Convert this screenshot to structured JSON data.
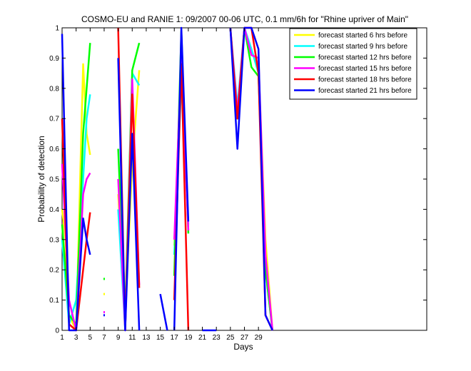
{
  "chart_data": {
    "type": "line",
    "title": "COSMO-EU and RANIE 1: 09/2007 00-06 UTC, 0.1 mm/6h for \"Rhine upriver of Main\"",
    "xlabel": "Days",
    "ylabel": "Probability of detection",
    "xlim": [
      1,
      53
    ],
    "ylim": [
      0,
      1
    ],
    "xticks": [
      1,
      3,
      5,
      7,
      9,
      11,
      13,
      15,
      17,
      19,
      21,
      23,
      25,
      27,
      29
    ],
    "yticks": [
      0,
      0.1,
      0.2,
      0.3,
      0.4,
      0.5,
      0.6,
      0.7,
      0.8,
      0.9,
      1
    ],
    "grid": false,
    "legend_position": "top-right",
    "series": [
      {
        "name": "forecast started 6 hrs before",
        "color": "#ffff00",
        "segments": [
          [
            [
              1,
              0.4
            ],
            [
              1.5,
              0.3
            ],
            [
              2,
              0.05
            ],
            [
              3,
              0
            ],
            [
              4,
              0.88
            ],
            [
              4.5,
              0.65
            ],
            [
              5,
              0.58
            ]
          ],
          [
            [
              9,
              0.45
            ],
            [
              10,
              0.05
            ],
            [
              11,
              0.55
            ],
            [
              12,
              0.86
            ]
          ],
          [
            [
              17,
              0.28
            ],
            [
              18,
              0.92
            ],
            [
              19,
              0.33
            ]
          ],
          [
            [
              25,
              1
            ],
            [
              26,
              0.7
            ],
            [
              27,
              1
            ],
            [
              28,
              0.92
            ],
            [
              29,
              0.88
            ],
            [
              30,
              0.3
            ],
            [
              31,
              0
            ]
          ]
        ],
        "points": [
          [
            7,
            0.12
          ]
        ]
      },
      {
        "name": "forecast started 9 hrs before",
        "color": "#00ffff",
        "segments": [
          [
            [
              1,
              0.3
            ],
            [
              2,
              0.02
            ],
            [
              3,
              0.1
            ],
            [
              4,
              0.5
            ],
            [
              4.5,
              0.7
            ],
            [
              5,
              0.78
            ]
          ],
          [
            [
              9,
              0.4
            ],
            [
              10,
              0
            ],
            [
              11,
              0.85
            ],
            [
              12,
              0.81
            ]
          ],
          [
            [
              17,
              0.25
            ],
            [
              18,
              0.82
            ],
            [
              19,
              0.35
            ]
          ],
          [
            [
              25,
              1
            ],
            [
              26,
              0.74
            ],
            [
              27,
              1
            ],
            [
              28,
              0.93
            ],
            [
              29,
              0.85
            ],
            [
              30,
              0.2
            ],
            [
              31,
              0
            ]
          ]
        ],
        "points": []
      },
      {
        "name": "forecast started 12 hrs before",
        "color": "#00ff00",
        "segments": [
          [
            [
              1,
              0.35
            ],
            [
              2,
              0.05
            ],
            [
              3,
              0.02
            ],
            [
              4,
              0.65
            ],
            [
              4.5,
              0.8
            ],
            [
              5,
              0.95
            ]
          ],
          [
            [
              9,
              0.6
            ],
            [
              10,
              0.05
            ],
            [
              11,
              0.86
            ],
            [
              12,
              0.95
            ]
          ],
          [
            [
              17,
              0.18
            ],
            [
              18,
              0.99
            ],
            [
              19,
              0.32
            ]
          ],
          [
            [
              25,
              1
            ],
            [
              26,
              0.7
            ],
            [
              27,
              1
            ],
            [
              28,
              0.87
            ],
            [
              29,
              0.84
            ],
            [
              30,
              0.2
            ],
            [
              31,
              0
            ]
          ]
        ],
        "points": [
          [
            7,
            0.17
          ]
        ]
      },
      {
        "name": "forecast started 15 hrs before",
        "color": "#ff00ff",
        "segments": [
          [
            [
              1,
              0.55
            ],
            [
              2,
              0.1
            ],
            [
              3,
              0
            ],
            [
              4,
              0.45
            ],
            [
              4.5,
              0.5
            ],
            [
              5,
              0.52
            ]
          ],
          [
            [
              9,
              0.5
            ],
            [
              10,
              0
            ],
            [
              11,
              0.83
            ],
            [
              12,
              0.15
            ]
          ],
          [
            [
              17,
              0.3
            ],
            [
              18,
              0.9
            ],
            [
              19,
              0.33
            ]
          ],
          [
            [
              25,
              1
            ],
            [
              26,
              0.72
            ],
            [
              27,
              1
            ],
            [
              28,
              0.91
            ],
            [
              29,
              0.9
            ],
            [
              30,
              0.25
            ],
            [
              31,
              0
            ]
          ]
        ],
        "points": [
          [
            7,
            0.06
          ]
        ]
      },
      {
        "name": "forecast started 18 hrs before",
        "color": "#ff0000",
        "segments": [
          [
            [
              1,
              0.7
            ],
            [
              2,
              0.02
            ],
            [
              3,
              0
            ],
            [
              4,
              0.2
            ],
            [
              4.5,
              0.3
            ],
            [
              5,
              0.39
            ]
          ],
          [
            [
              9,
              1
            ],
            [
              10,
              0
            ],
            [
              11,
              0.78
            ],
            [
              12,
              0.14
            ]
          ],
          [
            [
              17,
              0.1
            ],
            [
              18,
              0.88
            ],
            [
              19,
              0
            ]
          ],
          [
            [
              25,
              1
            ],
            [
              26,
              0.7
            ],
            [
              27,
              1
            ],
            [
              28,
              1
            ],
            [
              29,
              0.85
            ],
            [
              30,
              0.05
            ],
            [
              31,
              0
            ]
          ]
        ],
        "points": []
      },
      {
        "name": "forecast started 21 hrs before",
        "color": "#0000ff",
        "segments": [
          [
            [
              1,
              0.98
            ],
            [
              2,
              0
            ],
            [
              3,
              0
            ],
            [
              4,
              0.37
            ],
            [
              4.5,
              0.3
            ],
            [
              5,
              0.25
            ]
          ],
          [
            [
              9,
              0.9
            ],
            [
              10,
              0
            ],
            [
              11,
              0.65
            ],
            [
              12,
              0
            ]
          ],
          [
            [
              15,
              0.12
            ],
            [
              16,
              0
            ]
          ],
          [
            [
              17,
              0
            ],
            [
              18,
              1
            ],
            [
              19,
              0.36
            ]
          ],
          [
            [
              21,
              0
            ],
            [
              23,
              0
            ]
          ],
          [
            [
              25,
              1
            ],
            [
              26,
              0.6
            ],
            [
              27,
              1
            ],
            [
              28,
              1
            ],
            [
              29,
              0.93
            ],
            [
              30,
              0.05
            ],
            [
              31,
              0
            ]
          ]
        ],
        "points": [
          [
            7,
            0.05
          ]
        ]
      }
    ]
  }
}
